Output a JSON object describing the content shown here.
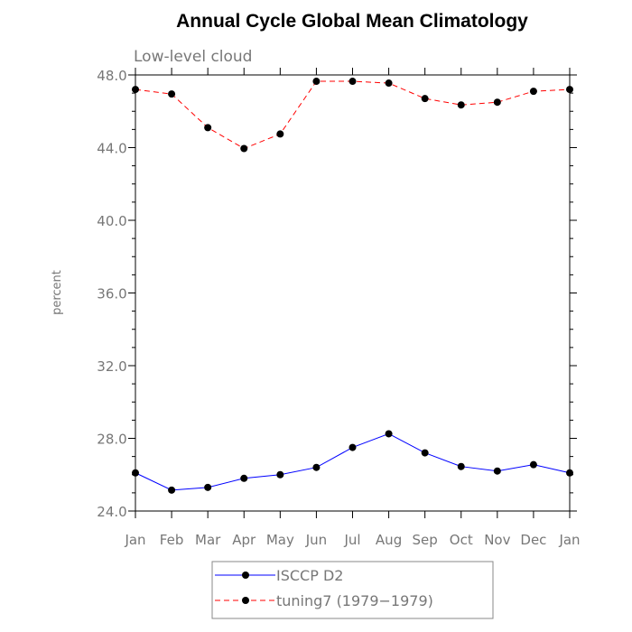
{
  "chart_data": {
    "type": "line",
    "title": "Annual Cycle Global Mean Climatology",
    "subtitle": "Low-level cloud",
    "ylabel": "percent",
    "xlabel": "",
    "categories": [
      "Jan",
      "Feb",
      "Mar",
      "Apr",
      "May",
      "Jun",
      "Jul",
      "Aug",
      "Sep",
      "Oct",
      "Nov",
      "Dec",
      "Jan"
    ],
    "ylim": [
      24.0,
      48.0
    ],
    "yticks": [
      24.0,
      28.0,
      32.0,
      36.0,
      40.0,
      44.0,
      48.0
    ],
    "ytick_labels": [
      "24.0",
      "28.0",
      "32.0",
      "36.0",
      "40.0",
      "44.0",
      "48.0"
    ],
    "series": [
      {
        "name": "ISCCP D2",
        "color": "#0000ff",
        "dash": "solid",
        "values": [
          26.1,
          25.15,
          25.3,
          25.8,
          26.0,
          26.4,
          27.5,
          28.25,
          27.2,
          26.45,
          26.2,
          26.55,
          26.1
        ]
      },
      {
        "name": "tuning7 (1979−1979)",
        "color": "#ff0000",
        "dash": "dashed",
        "values": [
          47.2,
          46.95,
          45.1,
          43.95,
          44.75,
          47.65,
          47.65,
          47.55,
          46.7,
          46.35,
          46.5,
          47.1,
          47.2
        ]
      }
    ],
    "legend": [
      "ISCCP D2",
      "tuning7 (1979−1979)"
    ]
  }
}
